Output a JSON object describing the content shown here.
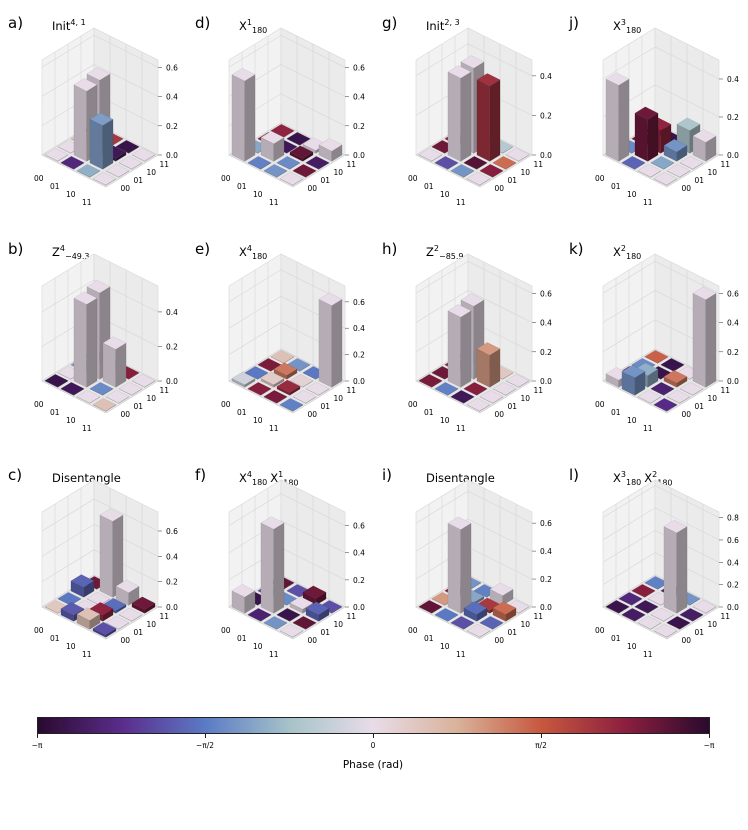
{
  "chart_data": [
    {
      "type": "bar3d",
      "label": "a)",
      "title_base": "Init",
      "title_sup": "4, 1",
      "title_sub": "",
      "title_rest": "",
      "zticks": [
        "0.0",
        "0.2",
        "0.4",
        "0.6"
      ],
      "zmax": 0.65,
      "heights": [
        [
          0.0,
          0.0,
          0.0,
          0.0
        ],
        [
          0.0,
          0.48,
          0.5,
          0.0
        ],
        [
          0.0,
          0.3,
          0.02,
          0.0
        ],
        [
          0.0,
          0.0,
          0.0,
          0.0
        ]
      ],
      "phases": [
        [
          0.0,
          0.0,
          0.4,
          2.2
        ],
        [
          -2.5,
          0.0,
          0.0,
          2.0
        ],
        [
          -1.0,
          -1.2,
          -2.8,
          -2.9
        ],
        [
          0.0,
          0.0,
          0.0,
          0.0
        ]
      ]
    },
    {
      "type": "bar3d",
      "label": "b)",
      "title_base": "Z",
      "title_sup": "4",
      "title_sub": "−49.3",
      "title_rest": "",
      "zticks": [
        "0.0",
        "0.2",
        "0.4"
      ],
      "zmax": 0.55,
      "heights": [
        [
          0.0,
          0.0,
          0.0,
          0.0
        ],
        [
          0.0,
          0.48,
          0.5,
          0.0
        ],
        [
          0.0,
          0.0,
          0.22,
          0.0
        ],
        [
          0.0,
          0.0,
          0.0,
          0.0
        ]
      ],
      "phases": [
        [
          -2.9,
          0.0,
          -1.2,
          1.5
        ],
        [
          -2.8,
          0.0,
          0.0,
          -1.3
        ],
        [
          0.0,
          -1.4,
          0.0,
          2.4
        ],
        [
          0.5,
          0.0,
          0.0,
          0.0
        ]
      ]
    },
    {
      "type": "bar3d",
      "label": "c)",
      "title_base": "Disentangle",
      "title_sup": "",
      "title_sub": "",
      "title_rest": "",
      "zticks": [
        "0.0",
        "0.2",
        "0.4",
        "0.6"
      ],
      "zmax": 0.75,
      "heights": [
        [
          0.0,
          0.0,
          0.08,
          0.0
        ],
        [
          0.05,
          0.0,
          0.0,
          0.6
        ],
        [
          0.07,
          0.05,
          0.02,
          0.1
        ],
        [
          0.02,
          0.0,
          0.0,
          0.03
        ]
      ],
      "phases": [
        [
          0.4,
          -1.6,
          -1.8,
          2.6
        ],
        [
          -1.9,
          0.0,
          0.0,
          0.0
        ],
        [
          0.5,
          2.3,
          -1.7,
          0.0
        ],
        [
          -2.0,
          0.0,
          0.0,
          2.6
        ]
      ]
    },
    {
      "type": "bar3d",
      "label": "d)",
      "title_base": "X",
      "title_sup": "1",
      "title_sub": "180",
      "title_rest": "",
      "zticks": [
        "0.0",
        "0.2",
        "0.4",
        "0.6"
      ],
      "zmax": 0.65,
      "heights": [
        [
          0.55,
          0.0,
          0.0,
          0.0
        ],
        [
          0.0,
          0.12,
          0.0,
          0.0
        ],
        [
          0.0,
          0.0,
          0.02,
          0.02
        ],
        [
          0.0,
          0.0,
          0.0,
          0.07
        ]
      ],
      "phases": [
        [
          0.0,
          -1.1,
          2.4,
          2.3
        ],
        [
          -1.5,
          0.0,
          -2.8,
          -2.9
        ],
        [
          -1.3,
          -1.4,
          2.7,
          0.0
        ],
        [
          0.0,
          2.6,
          -2.7,
          0.0
        ]
      ]
    },
    {
      "type": "bar3d",
      "label": "e)",
      "title_base": "X",
      "title_sup": "4",
      "title_sub": "180",
      "title_rest": "",
      "zticks": [
        "0.0",
        "0.2",
        "0.4",
        "0.6"
      ],
      "zmax": 0.72,
      "heights": [
        [
          0.02,
          0.0,
          0.0,
          0.0
        ],
        [
          0.0,
          0.02,
          0.03,
          0.0
        ],
        [
          0.0,
          0.02,
          0.0,
          0.0
        ],
        [
          0.0,
          0.0,
          0.0,
          0.62
        ]
      ],
      "phases": [
        [
          -0.3,
          -1.6,
          2.5,
          0.5
        ],
        [
          2.4,
          0.3,
          1.3,
          -1.3
        ],
        [
          2.5,
          2.2,
          0.2,
          -1.6
        ],
        [
          -1.5,
          0.0,
          0.0,
          0.0
        ]
      ]
    },
    {
      "type": "bar3d",
      "label": "f)",
      "title_base": "X",
      "title_sup": "4",
      "title_sub": "180",
      "title_rest": "1",
      "title_rest_sub": "180",
      "zticks": [
        "0.0",
        "0.2",
        "0.4",
        "0.6"
      ],
      "zmax": 0.7,
      "heights": [
        [
          0.12,
          0.0,
          0.0,
          0.0
        ],
        [
          0.0,
          0.62,
          0.0,
          0.0
        ],
        [
          0.0,
          0.0,
          0.03,
          0.05
        ],
        [
          0.0,
          0.0,
          0.05,
          0.0
        ]
      ],
      "phases": [
        [
          0.0,
          -2.9,
          -2.0,
          2.7
        ],
        [
          -2.6,
          0.0,
          -1.4,
          -2.0
        ],
        [
          -1.3,
          -2.9,
          0.0,
          2.6
        ],
        [
          0.0,
          2.7,
          -1.8,
          -2.0
        ]
      ]
    },
    {
      "type": "bar3d",
      "label": "g)",
      "title_base": "Init",
      "title_sup": "2, 3",
      "title_sub": "",
      "title_rest": "",
      "zticks": [
        "0.0",
        "0.2",
        "0.4"
      ],
      "zmax": 0.48,
      "heights": [
        [
          0.0,
          0.0,
          0.0,
          0.0
        ],
        [
          0.0,
          0.42,
          0.43,
          0.0
        ],
        [
          0.0,
          0.0,
          0.38,
          0.0
        ],
        [
          0.0,
          0.0,
          0.0,
          0.0
        ]
      ],
      "phases": [
        [
          0.0,
          2.6,
          2.3,
          0.0
        ],
        [
          -2.0,
          0.0,
          0.0,
          -0.3
        ],
        [
          -1.3,
          2.8,
          2.1,
          -0.6
        ],
        [
          0.0,
          2.4,
          1.4,
          0.0
        ]
      ]
    },
    {
      "type": "bar3d",
      "label": "h)",
      "title_base": "Z",
      "title_sup": "2",
      "title_sub": "−85.9",
      "title_rest": "",
      "zticks": [
        "0.0",
        "0.2",
        "0.4",
        "0.6"
      ],
      "zmax": 0.65,
      "heights": [
        [
          0.0,
          0.0,
          0.0,
          0.0
        ],
        [
          0.0,
          0.48,
          0.5,
          0.0
        ],
        [
          0.0,
          0.0,
          0.22,
          0.0
        ],
        [
          0.0,
          0.0,
          0.0,
          0.0
        ]
      ],
      "phases": [
        [
          2.5,
          2.6,
          2.3,
          -1.4
        ],
        [
          -1.5,
          0.0,
          0.0,
          1.0
        ],
        [
          -2.8,
          2.4,
          1.0,
          0.4
        ],
        [
          0.0,
          0.0,
          0.0,
          0.0
        ]
      ]
    },
    {
      "type": "bar3d",
      "label": "i)",
      "title_base": "Disentangle",
      "title_sup": "",
      "title_sub": "",
      "title_rest": "",
      "zticks": [
        "0.0",
        "0.2",
        "0.4",
        "0.6"
      ],
      "zmax": 0.68,
      "heights": [
        [
          0.0,
          0.0,
          0.0,
          0.0
        ],
        [
          0.0,
          0.6,
          0.02,
          0.0
        ],
        [
          0.0,
          0.05,
          0.02,
          0.07
        ],
        [
          0.0,
          0.0,
          0.05,
          0.0
        ]
      ],
      "phases": [
        [
          2.7,
          1.0,
          2.3,
          -1.3
        ],
        [
          -1.6,
          0.0,
          -1.1,
          -1.5
        ],
        [
          -2.0,
          -1.7,
          2.0,
          0.0
        ],
        [
          0.0,
          -1.8,
          1.4,
          0.0
        ]
      ]
    },
    {
      "type": "bar3d",
      "label": "j)",
      "title_base": "X",
      "title_sup": "3",
      "title_sub": "180",
      "title_rest": "",
      "zticks": [
        "0.0",
        "0.2",
        "0.4"
      ],
      "zmax": 0.5,
      "heights": [
        [
          0.4,
          0.0,
          0.0,
          0.0
        ],
        [
          0.0,
          0.22,
          0.12,
          0.0
        ],
        [
          0.0,
          0.0,
          0.05,
          0.12
        ],
        [
          0.0,
          0.0,
          0.0,
          0.1
        ]
      ],
      "phases": [
        [
          0.0,
          -1.4,
          2.6,
          2.4
        ],
        [
          -1.8,
          2.6,
          2.3,
          -2.9
        ],
        [
          0.0,
          -1.1,
          -1.3,
          -0.7
        ],
        [
          0.0,
          0.0,
          0.0,
          0.0
        ]
      ]
    },
    {
      "type": "bar3d",
      "label": "k)",
      "title_base": "X",
      "title_sup": "2",
      "title_sub": "180",
      "title_rest": "",
      "zticks": [
        "0.0",
        "0.2",
        "0.4",
        "0.6"
      ],
      "zmax": 0.65,
      "heights": [
        [
          0.05,
          0.0,
          0.0,
          0.0
        ],
        [
          0.12,
          0.08,
          0.0,
          0.0
        ],
        [
          0.0,
          0.0,
          0.03,
          0.0
        ],
        [
          0.0,
          0.0,
          0.0,
          0.6
        ]
      ],
      "phases": [
        [
          0.0,
          2.4,
          -1.4,
          1.5
        ],
        [
          -1.3,
          -1.0,
          -2.9,
          -2.9
        ],
        [
          0.0,
          -2.6,
          1.3,
          0.0
        ],
        [
          -2.4,
          0.0,
          0.0,
          0.0
        ]
      ]
    },
    {
      "type": "bar3d",
      "label": "l)",
      "title_base": "X",
      "title_sup": "3",
      "title_sub": "180",
      "title_rest": "2",
      "title_rest_sub": "180",
      "zticks": [
        "0.0",
        "0.2",
        "0.4",
        "0.6",
        "0.8"
      ],
      "zmax": 0.85,
      "heights": [
        [
          0.0,
          0.0,
          0.0,
          0.0
        ],
        [
          0.0,
          0.0,
          0.0,
          0.0
        ],
        [
          0.0,
          0.0,
          0.72,
          0.0
        ],
        [
          0.0,
          0.0,
          0.0,
          0.0
        ]
      ],
      "phases": [
        [
          -2.9,
          -2.5,
          2.4,
          -1.5
        ],
        [
          -2.7,
          -2.8,
          0.0,
          -2.6
        ],
        [
          0.0,
          0.0,
          0.0,
          -1.3
        ],
        [
          0.0,
          -2.9,
          -2.7,
          0.0
        ]
      ]
    }
  ],
  "axis_ticks": {
    "x": [
      "00",
      "01",
      "10",
      "11"
    ],
    "y": [
      "00",
      "01",
      "10",
      "11"
    ]
  },
  "colorbar": {
    "title": "Phase (rad)",
    "tick_labels": [
      "−π",
      "−π/2",
      "0",
      "π/2",
      "−π"
    ],
    "colors": [
      "#2a0a2e",
      "#5b2c8c",
      "#5b7bc5",
      "#a6c3c9",
      "#e8dce8",
      "#d9b29a",
      "#c7583f",
      "#8c1f3f",
      "#2a0a2e"
    ]
  }
}
